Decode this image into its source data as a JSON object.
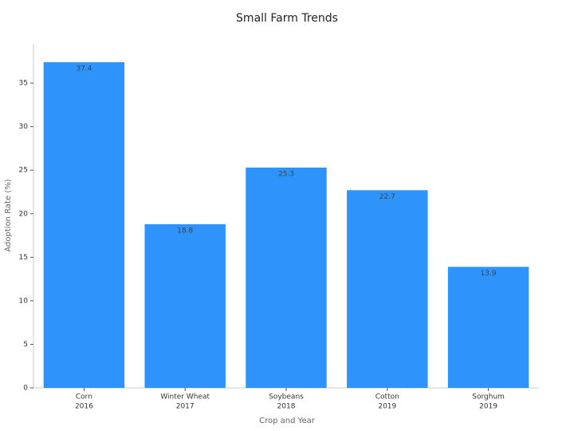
{
  "chart_data": {
    "type": "bar",
    "title": "Small Farm Trends",
    "x_label": "Crop and Year",
    "y_label": "Adoption Rate (%)",
    "categories": [
      [
        "Corn",
        "2016"
      ],
      [
        "Winter Wheat",
        "2017"
      ],
      [
        "Soybeans",
        "2018"
      ],
      [
        "Cotton",
        "2019"
      ],
      [
        "Sorghum",
        "2019"
      ]
    ],
    "values": [
      37.4,
      18.8,
      25.3,
      22.7,
      13.9
    ],
    "color": "#2e93fa",
    "ylim": [
      0,
      39.5
    ],
    "yticks": [
      0,
      5,
      10,
      15,
      20,
      25,
      30,
      35
    ],
    "grid": false
  }
}
